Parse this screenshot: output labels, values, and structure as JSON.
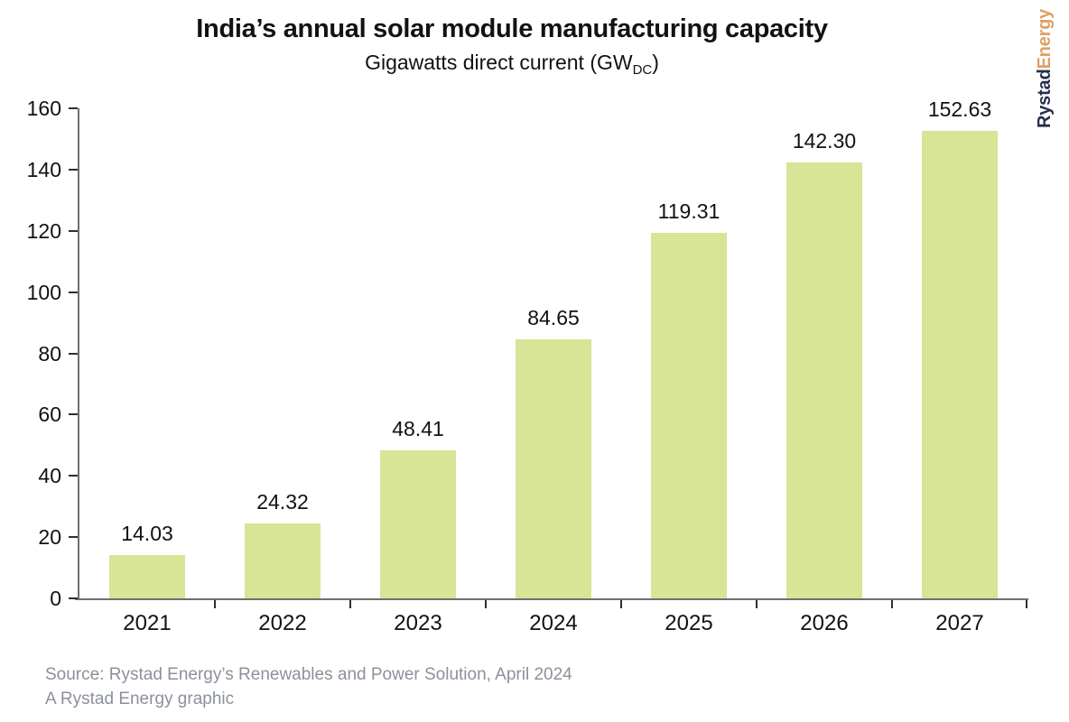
{
  "title": "India’s annual solar module manufacturing capacity",
  "subtitle": {
    "main": "Gigawatts direct current (GW",
    "sub": "DC",
    "end": ")"
  },
  "logo": {
    "part1": "Rystad",
    "part2": "Energy"
  },
  "source": {
    "line1": "Source: Rystad Energy’s Renewables and Power Solution, April 2024",
    "line2": "A Rystad Energy graphic"
  },
  "colors": {
    "bar": "#d8e496",
    "axis": "#6f6f6f",
    "tick": "#2f2f2f",
    "text": "#121212",
    "source_text": "#8b919b",
    "logo_navy": "#26304a",
    "logo_orange": "#dfa065"
  },
  "chart_data": {
    "type": "bar",
    "title": "India’s annual solar module manufacturing capacity",
    "subtitle": "Gigawatts direct current (GWDC)",
    "categories": [
      "2021",
      "2022",
      "2023",
      "2024",
      "2025",
      "2026",
      "2027"
    ],
    "values": [
      14.03,
      24.32,
      48.41,
      84.65,
      119.31,
      142.3,
      152.63
    ],
    "value_labels": [
      "14.03",
      "24.32",
      "48.41",
      "84.65",
      "119.31",
      "142.30",
      "152.63"
    ],
    "xlabel": "",
    "ylabel": "",
    "ylim": [
      0,
      160
    ],
    "y_ticks": [
      0,
      20,
      40,
      60,
      80,
      100,
      120,
      140,
      160
    ],
    "grid": false,
    "legend": false,
    "data_labels": true
  }
}
